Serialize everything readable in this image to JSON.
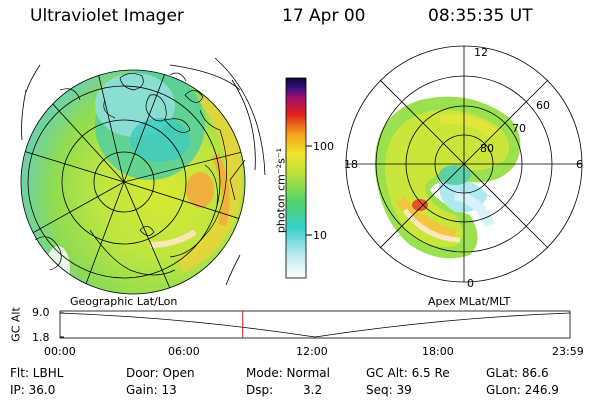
{
  "header": {
    "instrument": "Ultraviolet Imager",
    "date": "17 Apr 00",
    "time": "08:35:35 UT"
  },
  "geo_panel": {
    "label": "Geographic Lat/Lon"
  },
  "colorbar": {
    "unit": "photon cm⁻²s⁻¹",
    "ticks": [
      "100",
      "10"
    ]
  },
  "apex_panel": {
    "label": "Apex MLat/MLT",
    "mlt_labels": [
      "12",
      "18",
      "6",
      "0"
    ],
    "lat_labels": [
      "60",
      "70",
      "80"
    ]
  },
  "timeline": {
    "ylabel": "GC Alt",
    "yticks": [
      "9.0",
      "1.8"
    ],
    "xticks": [
      "00:00",
      "06:00",
      "12:00",
      "18:00",
      "23:59"
    ],
    "marker_time_hours": 8.6,
    "alt_range": [
      1.8,
      9.0
    ]
  },
  "info": {
    "flt": "Flt: LBHL",
    "ip": "IP: 36.0",
    "door": "Door: Open",
    "gain": "Gain: 13",
    "mode": "Mode: Normal",
    "dsp_label": "Dsp:",
    "dsp_value": "3.2",
    "gcalt": "GC Alt: 6.5 Re",
    "seq": "Seq: 39",
    "glat": "GLat: 86.6",
    "glon": "GLon: 246.9"
  }
}
